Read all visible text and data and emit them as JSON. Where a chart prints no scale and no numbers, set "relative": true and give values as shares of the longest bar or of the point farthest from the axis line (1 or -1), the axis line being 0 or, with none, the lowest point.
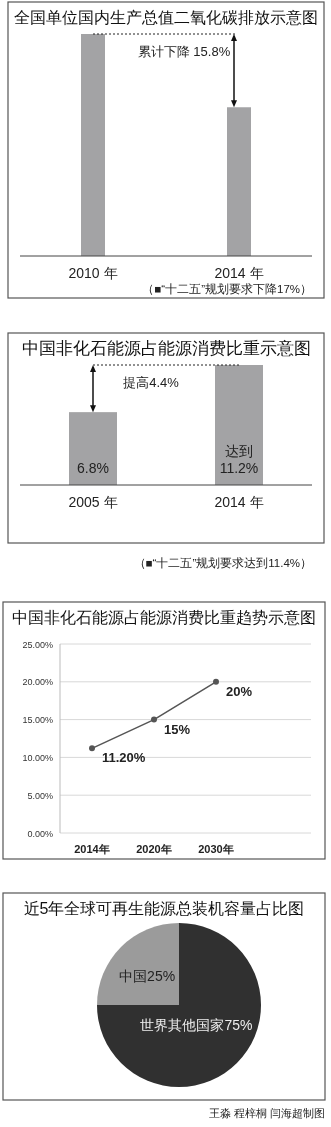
{
  "chart_data": [
    {
      "type": "bar",
      "title": "全国单位国内生产总值二氧化碳排放示意图",
      "categories": [
        "2010 年",
        "2014 年"
      ],
      "values": [
        1,
        0.67
      ],
      "relative": true,
      "color": "#a3a3a5",
      "annotations": [
        "累计下降 15.8%",
        "（■“十二五”规划要求下降17%）"
      ]
    },
    {
      "type": "bar",
      "title": "中国非化石能源占能源消费比重示意图",
      "categories": [
        "2005 年",
        "2014 年"
      ],
      "values": [
        6.8,
        11.2
      ],
      "value_labels": [
        "6.8%",
        "达到\n11.2%"
      ],
      "color": "#a3a3a5",
      "annotations": [
        "提高4.4%",
        "（■“十二五”规划要求达到11.4%）"
      ]
    },
    {
      "type": "line",
      "title": "中国非化石能源占能源消费比重趋势示意图",
      "categories": [
        "2014年",
        "2020年",
        "2030年"
      ],
      "values": [
        11.2,
        15,
        20
      ],
      "value_labels": [
        "11.20%",
        "15%",
        "20%"
      ],
      "color": "#555555",
      "ylim": [
        0,
        25
      ],
      "yticks": [
        {
          "value": 0,
          "label": "0.00%"
        },
        {
          "value": 5,
          "label": "5.00%"
        },
        {
          "value": 10,
          "label": "10.00%"
        },
        {
          "value": 15,
          "label": "15.00%"
        },
        {
          "value": 20,
          "label": "20.00%"
        },
        {
          "value": 25,
          "label": "25.00%"
        }
      ],
      "grid": "y",
      "marker": "circle"
    },
    {
      "type": "pie",
      "title": "近5年全球可再生能源总装机容量占比图",
      "categories": [
        "中国",
        "世界其他国家"
      ],
      "values": [
        25,
        75
      ],
      "colors": [
        "#9b9b9b",
        "#303030"
      ],
      "value_labels": [
        "25%",
        "75%"
      ],
      "annotations": [
        "王淼 程梓桐 闫海超制图"
      ]
    }
  ]
}
